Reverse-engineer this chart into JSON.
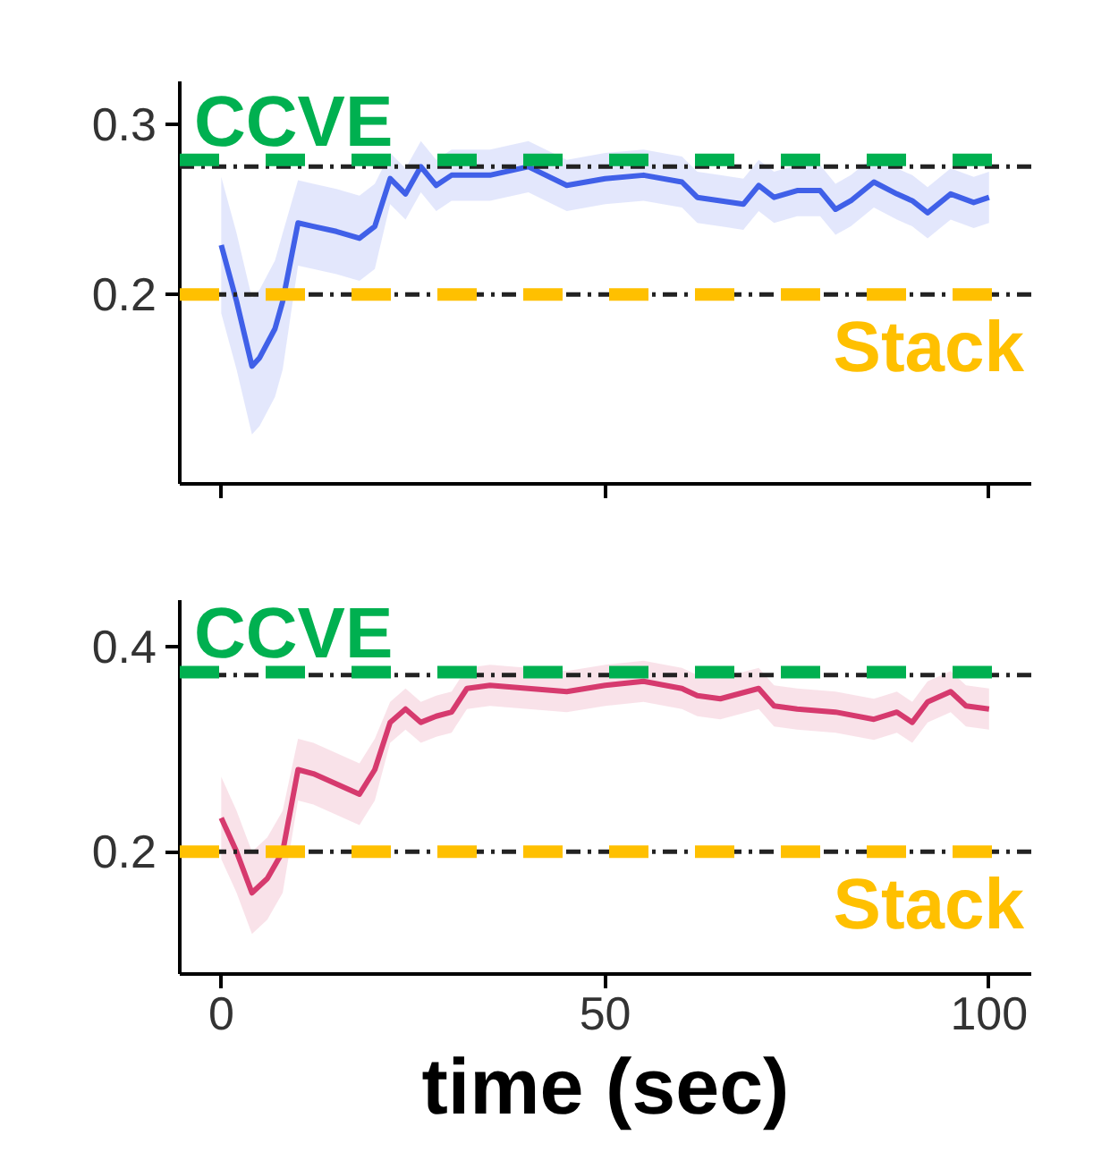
{
  "chart_data": [
    {
      "type": "line",
      "xlim": [
        -5.4,
        105.5
      ],
      "ylim": [
        0.089,
        0.325
      ],
      "xticks": [
        0,
        50,
        100
      ],
      "yticks": [
        {
          "value": 0.2,
          "label": "0.2"
        },
        {
          "value": 0.3,
          "label": "0.3"
        }
      ],
      "tick_labels": "y",
      "grid": false,
      "line_style": "solid",
      "series": [
        {
          "color": "#4060e8",
          "x": [
            0,
            2,
            4,
            5,
            7,
            8,
            10,
            12,
            15,
            18,
            20,
            22,
            24,
            26,
            28,
            30,
            35,
            40,
            45,
            50,
            55,
            60,
            62,
            65,
            68,
            70,
            72,
            75,
            78,
            80,
            82,
            85,
            88,
            90,
            92,
            95,
            98,
            100
          ],
          "values": [
            0.229,
            0.196,
            0.158,
            0.163,
            0.18,
            0.196,
            0.242,
            0.24,
            0.237,
            0.233,
            0.24,
            0.268,
            0.259,
            0.275,
            0.264,
            0.27,
            0.27,
            0.275,
            0.264,
            0.268,
            0.27,
            0.266,
            0.257,
            0.255,
            0.253,
            0.264,
            0.257,
            0.261,
            0.261,
            0.25,
            0.255,
            0.266,
            0.259,
            0.255,
            0.248,
            0.259,
            0.254,
            0.257
          ],
          "lower": [
            0.189,
            0.156,
            0.118,
            0.123,
            0.14,
            0.156,
            0.217,
            0.215,
            0.212,
            0.208,
            0.215,
            0.253,
            0.244,
            0.26,
            0.249,
            0.255,
            0.255,
            0.26,
            0.249,
            0.253,
            0.255,
            0.251,
            0.242,
            0.24,
            0.238,
            0.249,
            0.242,
            0.246,
            0.246,
            0.235,
            0.24,
            0.251,
            0.244,
            0.24,
            0.233,
            0.244,
            0.239,
            0.242
          ],
          "upper": [
            0.269,
            0.236,
            0.198,
            0.203,
            0.22,
            0.236,
            0.267,
            0.265,
            0.262,
            0.258,
            0.265,
            0.283,
            0.274,
            0.29,
            0.279,
            0.285,
            0.285,
            0.29,
            0.279,
            0.283,
            0.285,
            0.281,
            0.272,
            0.27,
            0.268,
            0.279,
            0.272,
            0.276,
            0.276,
            0.265,
            0.27,
            0.281,
            0.274,
            0.27,
            0.263,
            0.274,
            0.269,
            0.272
          ]
        }
      ],
      "ref_lines": [
        {
          "axis": "y",
          "value": 0.275,
          "color": "#222222",
          "line_style": "dashed"
        },
        {
          "axis": "y",
          "value": 0.2,
          "color": "#222222",
          "line_style": "dashed"
        },
        {
          "axis": "y",
          "value": 0.279,
          "label": "CCVE",
          "color": "#00b050",
          "line_style": "dashed"
        },
        {
          "axis": "y",
          "value": 0.2,
          "label": "Stack",
          "color": "#ffc000",
          "line_style": "dashed"
        }
      ]
    },
    {
      "type": "line",
      "xlim": [
        -5.4,
        105.5
      ],
      "ylim": [
        0.081,
        0.445
      ],
      "xticks": [
        0,
        50,
        100
      ],
      "yticks": [
        {
          "value": 0.2,
          "label": "0.2"
        },
        {
          "value": 0.4,
          "label": "0.4"
        }
      ],
      "xlabel": "time (sec)",
      "grid": false,
      "line_style": "solid",
      "series": [
        {
          "color": "#d63a6e",
          "x": [
            0,
            2,
            4,
            6,
            8,
            10,
            12,
            15,
            18,
            20,
            22,
            24,
            26,
            28,
            30,
            32,
            35,
            40,
            45,
            50,
            55,
            60,
            62,
            65,
            70,
            72,
            75,
            80,
            85,
            88,
            90,
            92,
            95,
            97,
            100
          ],
          "values": [
            0.233,
            0.2,
            0.16,
            0.174,
            0.2,
            0.28,
            0.276,
            0.266,
            0.256,
            0.28,
            0.326,
            0.339,
            0.326,
            0.332,
            0.336,
            0.359,
            0.362,
            0.359,
            0.356,
            0.362,
            0.366,
            0.359,
            0.352,
            0.349,
            0.359,
            0.342,
            0.339,
            0.336,
            0.329,
            0.336,
            0.326,
            0.346,
            0.356,
            0.342,
            0.339
          ],
          "lower": [
            0.193,
            0.16,
            0.12,
            0.134,
            0.16,
            0.25,
            0.246,
            0.236,
            0.226,
            0.25,
            0.306,
            0.319,
            0.306,
            0.312,
            0.316,
            0.339,
            0.342,
            0.339,
            0.336,
            0.342,
            0.346,
            0.339,
            0.332,
            0.329,
            0.339,
            0.322,
            0.319,
            0.316,
            0.309,
            0.316,
            0.306,
            0.326,
            0.336,
            0.322,
            0.319
          ],
          "upper": [
            0.273,
            0.24,
            0.2,
            0.214,
            0.24,
            0.31,
            0.306,
            0.296,
            0.286,
            0.31,
            0.346,
            0.359,
            0.346,
            0.352,
            0.356,
            0.379,
            0.382,
            0.379,
            0.376,
            0.382,
            0.386,
            0.379,
            0.372,
            0.369,
            0.379,
            0.362,
            0.359,
            0.356,
            0.349,
            0.356,
            0.346,
            0.366,
            0.376,
            0.362,
            0.359
          ]
        }
      ],
      "ref_lines": [
        {
          "axis": "y",
          "value": 0.372,
          "color": "#222222",
          "line_style": "dashed"
        },
        {
          "axis": "y",
          "value": 0.2,
          "color": "#222222",
          "line_style": "dashed"
        },
        {
          "axis": "y",
          "value": 0.375,
          "label": "CCVE",
          "color": "#00b050",
          "line_style": "dashed"
        },
        {
          "axis": "y",
          "value": 0.2,
          "label": "Stack",
          "color": "#ffc000",
          "line_style": "dashed"
        }
      ]
    }
  ]
}
